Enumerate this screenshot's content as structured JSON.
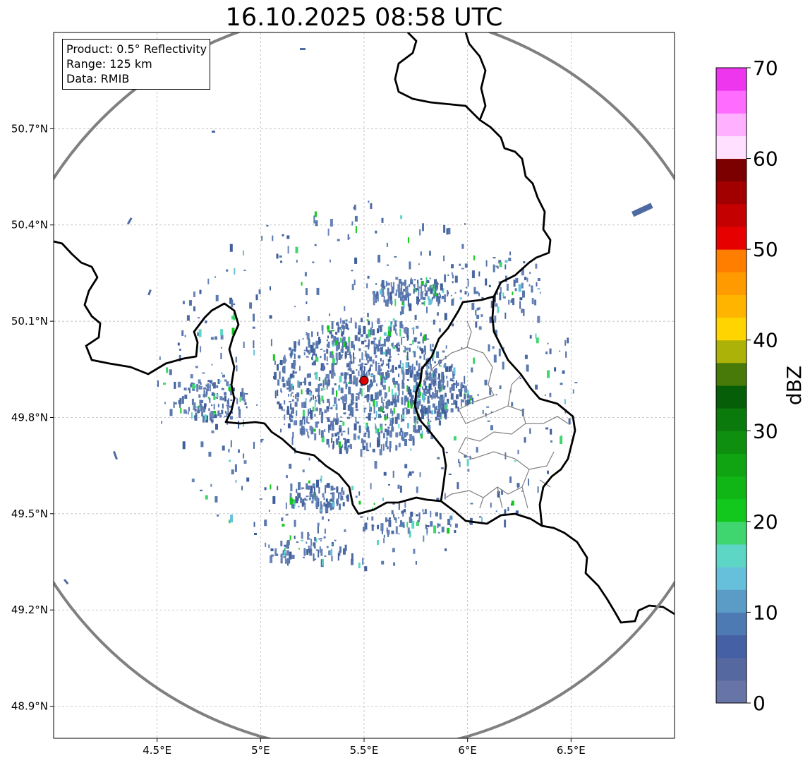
{
  "title": "16.10.2025 08:58 UTC",
  "info": {
    "product": "Product: 0.5° Reflectivity",
    "range": "Range: 125 km",
    "data": "Data: RMIB"
  },
  "map": {
    "extent": {
      "lon": [
        4.0,
        7.0
      ],
      "lat": [
        48.8,
        51.0
      ]
    },
    "radar_site": {
      "lon": 5.5,
      "lat": 49.915,
      "color": "#dd0000"
    },
    "range_ring_color": "#808080",
    "border_color": "#000000",
    "admin_border_color": "#808080",
    "x_ticks": [
      {
        "value": 4.5,
        "label": "4.5°E"
      },
      {
        "value": 5.0,
        "label": "5°E"
      },
      {
        "value": 5.5,
        "label": "5.5°E"
      },
      {
        "value": 6.0,
        "label": "6°E"
      },
      {
        "value": 6.5,
        "label": "6.5°E"
      }
    ],
    "y_ticks": [
      {
        "value": 50.7,
        "label": "50.7°N"
      },
      {
        "value": 50.4,
        "label": "50.4°N"
      },
      {
        "value": 50.1,
        "label": "50.1°N"
      },
      {
        "value": 49.8,
        "label": "49.8°N"
      },
      {
        "value": 49.5,
        "label": "49.5°N"
      },
      {
        "value": 49.2,
        "label": "49.2°N"
      },
      {
        "value": 48.9,
        "label": "48.9°N"
      }
    ]
  },
  "colorbar": {
    "title": "dBZ",
    "min": 0,
    "max": 70,
    "ticks": [
      {
        "value": 0,
        "label": "0"
      },
      {
        "value": 10,
        "label": "10"
      },
      {
        "value": 20,
        "label": "20"
      },
      {
        "value": 30,
        "label": "30"
      },
      {
        "value": 40,
        "label": "40"
      },
      {
        "value": 50,
        "label": "50"
      },
      {
        "value": 60,
        "label": "60"
      },
      {
        "value": 70,
        "label": "70"
      }
    ],
    "colors": [
      "#6674a8",
      "#5668a0",
      "#4660a6",
      "#4d7ab3",
      "#5b9cc7",
      "#67c0db",
      "#5ed6c6",
      "#3fd670",
      "#13c81c",
      "#10b516",
      "#10a312",
      "#0f8f10",
      "#0b7a0d",
      "#075e08",
      "#487a0a",
      "#adb208",
      "#ffd400",
      "#ffb400",
      "#ff9a00",
      "#ff7e00",
      "#e60000",
      "#c40000",
      "#a20000",
      "#7c0000",
      "#ffe0ff",
      "#ffb0ff",
      "#ff6cff",
      "#ee36ee"
    ]
  }
}
